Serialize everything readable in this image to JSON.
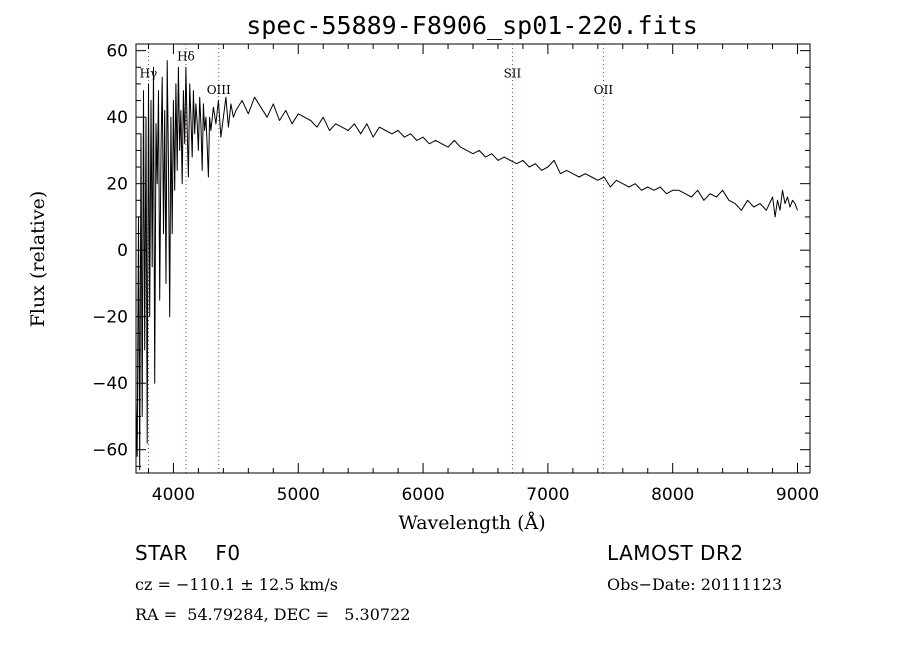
{
  "chart_data": {
    "type": "line",
    "title": "spec-55889-F8906_sp01-220.fits",
    "xlabel": "Wavelength (Å)",
    "ylabel": "Flux (relative)",
    "xlim": [
      3700,
      9100
    ],
    "ylim": [
      -67,
      62
    ],
    "xticks": [
      4000,
      5000,
      6000,
      7000,
      8000,
      9000
    ],
    "yticks": [
      -60,
      -40,
      -20,
      0,
      20,
      40,
      60
    ],
    "grid": false,
    "series_color": "#000000",
    "line_marker_color": "#c0392b",
    "spectral_lines": [
      {
        "name": "Hγ",
        "wavelength": 3800,
        "label_y": 52
      },
      {
        "name": "Hδ",
        "wavelength": 4100,
        "label_y": 57
      },
      {
        "name": "OIII",
        "wavelength": 4363,
        "label_y": 47
      },
      {
        "name": "SII",
        "wavelength": 6716,
        "label_y": 52
      },
      {
        "name": "OII",
        "wavelength": 7445,
        "label_y": 47
      }
    ],
    "series": [
      {
        "x": [
          3700,
          3710,
          3720,
          3730,
          3740,
          3750,
          3760,
          3770,
          3780,
          3790,
          3800,
          3810,
          3820,
          3830,
          3840,
          3850,
          3860,
          3870,
          3880,
          3890,
          3900,
          3910,
          3920,
          3930,
          3940,
          3950,
          3960,
          3970,
          3980,
          3990,
          4000,
          4010,
          4020,
          4030,
          4040,
          4050,
          4060,
          4070,
          4080,
          4090,
          4100,
          4110,
          4120,
          4130,
          4140,
          4150,
          4160,
          4170,
          4180,
          4190,
          4200,
          4210,
          4220,
          4230,
          4240,
          4250,
          4260,
          4270,
          4280,
          4290,
          4300,
          4320,
          4340,
          4360,
          4380,
          4400,
          4420,
          4440,
          4460,
          4480,
          4500,
          4550,
          4600,
          4650,
          4700,
          4750,
          4800,
          4850,
          4900,
          4950,
          5000,
          5050,
          5100,
          5150,
          5200,
          5250,
          5300,
          5350,
          5400,
          5450,
          5500,
          5550,
          5600,
          5650,
          5700,
          5750,
          5800,
          5850,
          5900,
          5950,
          6000,
          6050,
          6100,
          6150,
          6200,
          6250,
          6300,
          6350,
          6400,
          6450,
          6500,
          6550,
          6600,
          6650,
          6700,
          6750,
          6800,
          6850,
          6900,
          6950,
          7000,
          7050,
          7100,
          7150,
          7200,
          7250,
          7300,
          7350,
          7400,
          7450,
          7500,
          7550,
          7600,
          7650,
          7700,
          7750,
          7800,
          7850,
          7900,
          7950,
          8000,
          8050,
          8100,
          8150,
          8200,
          8250,
          8300,
          8350,
          8400,
          8450,
          8500,
          8550,
          8600,
          8650,
          8700,
          8750,
          8800,
          8820,
          8840,
          8860,
          8880,
          8900,
          8920,
          8940,
          8960,
          8980,
          9000
        ],
        "y": [
          -45,
          -62,
          10,
          -66,
          35,
          -50,
          48,
          -30,
          40,
          -58,
          50,
          -20,
          45,
          -5,
          55,
          -40,
          38,
          20,
          48,
          -15,
          30,
          52,
          5,
          42,
          -10,
          57,
          25,
          -20,
          40,
          5,
          45,
          18,
          50,
          24,
          55,
          30,
          42,
          20,
          48,
          32,
          55,
          36,
          22,
          50,
          40,
          28,
          48,
          35,
          44,
          38,
          30,
          46,
          38,
          24,
          44,
          36,
          40,
          32,
          22,
          40,
          36,
          43,
          38,
          45,
          34,
          40,
          46,
          37,
          44,
          40,
          42,
          45,
          41,
          46,
          43,
          40,
          44,
          39,
          42,
          38,
          41,
          40,
          39,
          37,
          40,
          36,
          38,
          37,
          36,
          38,
          35,
          38,
          34,
          37,
          36,
          35,
          36,
          34,
          35,
          33,
          34,
          32,
          33,
          32,
          31,
          33,
          31,
          30,
          29,
          30,
          28,
          29,
          27,
          28,
          27,
          26,
          27,
          25,
          26,
          24,
          25,
          27,
          23,
          24,
          23,
          22,
          23,
          22,
          21,
          22,
          19,
          21,
          20,
          19,
          20,
          18,
          19,
          18,
          19,
          17,
          18,
          18,
          17,
          16,
          18,
          15,
          17,
          16,
          18,
          15,
          14,
          12,
          15,
          13,
          14,
          12,
          16,
          10,
          15,
          12,
          18,
          14,
          16,
          13,
          15,
          14,
          12
        ]
      }
    ]
  },
  "info": {
    "class_line": "STAR    F0",
    "survey": "LAMOST DR2",
    "cz": "cz = −110.1 ± 12.5 km/s",
    "obs_date": "Obs−Date: 20111123",
    "coords": "RA =  54.79284, DEC =   5.30722"
  }
}
